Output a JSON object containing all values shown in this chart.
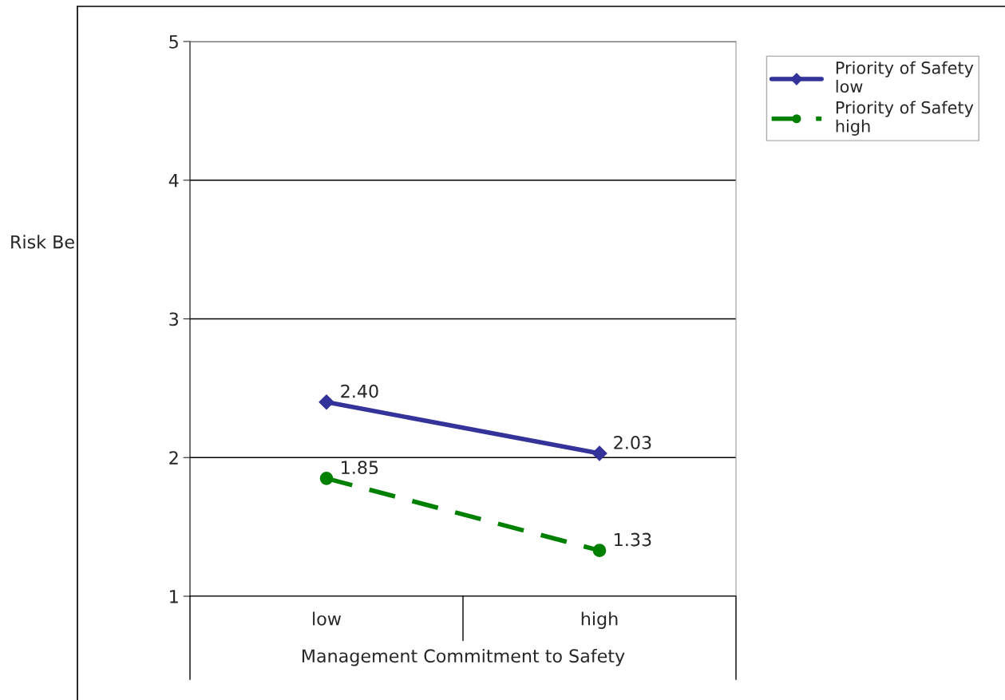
{
  "chart_data": {
    "type": "line",
    "categories": [
      "low",
      "high"
    ],
    "xlabel": "Management Commitment to Safety",
    "annotations": [
      "Risk Be"
    ],
    "ylim": [
      1,
      5
    ],
    "yticks": [
      1,
      2,
      3,
      4,
      5
    ],
    "grid": "y",
    "legend": "top right",
    "series": [
      {
        "name": "Priority of Safety\nlow",
        "color": "#333399",
        "marker": "diamond",
        "line_style": "solid",
        "values": [
          2.4,
          2.03
        ],
        "value_labels": [
          "2.40",
          "2.03"
        ]
      },
      {
        "name": "Priority of Safety\nhigh",
        "color": "#008000",
        "marker": "circle",
        "line_style": "dashed",
        "values": [
          1.85,
          1.33
        ],
        "value_labels": [
          "1.85",
          "1.33"
        ]
      }
    ]
  }
}
